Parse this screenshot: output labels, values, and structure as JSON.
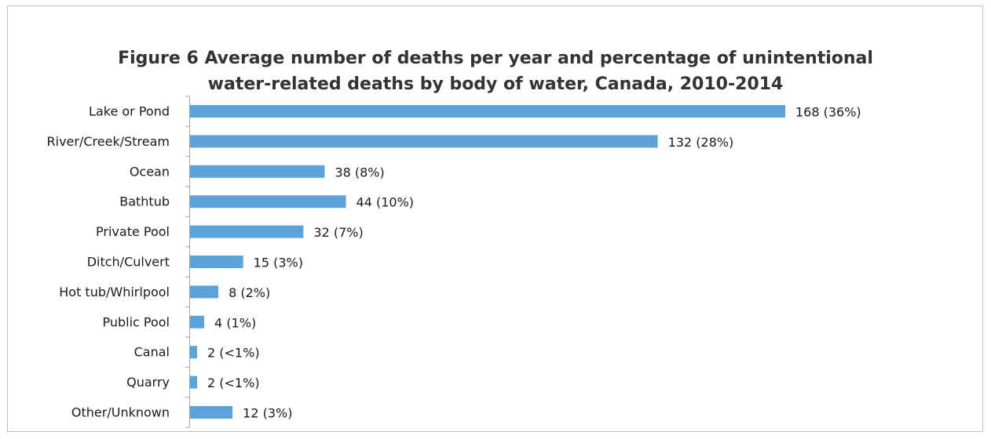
{
  "chart_data": {
    "type": "bar",
    "orientation": "horizontal",
    "title_lines": [
      "Figure 6 Average number of deaths per year and percentage of unintentional",
      "water-related deaths by body of water, Canada, 2010-2014"
    ],
    "categories": [
      "Lake or Pond",
      "River/Creek/Stream",
      "Ocean",
      "Bathtub",
      "Private Pool",
      "Ditch/Culvert",
      "Hot tub/Whirlpool",
      "Public Pool",
      "Canal",
      "Quarry",
      "Other/Unknown"
    ],
    "values": [
      168,
      132,
      38,
      44,
      32,
      15,
      8,
      4,
      2,
      2,
      12
    ],
    "data_labels": [
      "168 (36%)",
      "132 (28%)",
      "38 (8%)",
      "44 (10%)",
      "32 (7%)",
      "15 (3%)",
      "8 (2%)",
      "4 (1%)",
      "2 (<1%)",
      "2 (<1%)",
      "12 (3%)"
    ],
    "xlim": [
      0,
      168
    ],
    "grid": false,
    "legend": "none",
    "bar_color": "#5ba3d9",
    "axis_color": "#a6a6a6"
  }
}
